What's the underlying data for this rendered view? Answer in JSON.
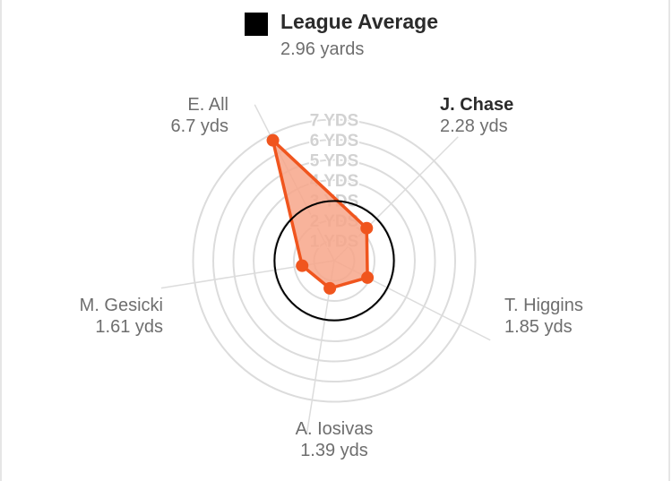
{
  "legend": {
    "title": "League Average",
    "value": "2.96 yards",
    "color": "#000000"
  },
  "chart_data": {
    "type": "radar",
    "unit": "yds",
    "rlim": [
      0,
      7
    ],
    "ring_labels": [
      "1 YDS",
      "2 YDS",
      "3 YDS",
      "4 YDS",
      "5 YDS",
      "6 YDS",
      "7 YDS"
    ],
    "reference": {
      "name": "League Average",
      "value": 2.96,
      "color": "#000000"
    },
    "series_color": "#f0551e",
    "series_fill": "#f7a68a",
    "axes": [
      {
        "name": "J. Chase",
        "value": 2.28,
        "label": "2.28 yds",
        "highlight": true
      },
      {
        "name": "T. Higgins",
        "value": 1.85,
        "label": "1.85 yds",
        "highlight": false
      },
      {
        "name": "A. Iosivas",
        "value": 1.39,
        "label": "1.39 yds",
        "highlight": false
      },
      {
        "name": "M. Gesicki",
        "value": 1.61,
        "label": "1.61 yds",
        "highlight": false
      },
      {
        "name": "E. All",
        "value": 6.7,
        "label": "6.7 yds",
        "highlight": false
      }
    ]
  }
}
